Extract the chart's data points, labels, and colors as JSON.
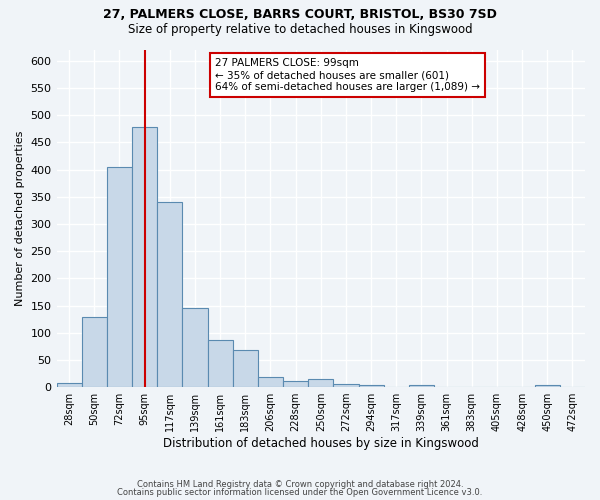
{
  "title1": "27, PALMERS CLOSE, BARRS COURT, BRISTOL, BS30 7SD",
  "title2": "Size of property relative to detached houses in Kingswood",
  "xlabel": "Distribution of detached houses by size in Kingswood",
  "ylabel": "Number of detached properties",
  "bin_labels": [
    "28sqm",
    "50sqm",
    "72sqm",
    "95sqm",
    "117sqm",
    "139sqm",
    "161sqm",
    "183sqm",
    "206sqm",
    "228sqm",
    "250sqm",
    "272sqm",
    "294sqm",
    "317sqm",
    "339sqm",
    "361sqm",
    "383sqm",
    "405sqm",
    "428sqm",
    "450sqm",
    "472sqm"
  ],
  "bar_values": [
    8,
    128,
    405,
    478,
    340,
    145,
    87,
    68,
    18,
    11,
    15,
    6,
    4,
    0,
    3,
    0,
    0,
    0,
    0,
    4,
    0
  ],
  "bar_color": "#c8d8e8",
  "bar_edge_color": "#5a8ab0",
  "annotation_line1": "27 PALMERS CLOSE: 99sqm",
  "annotation_line2": "← 35% of detached houses are smaller (601)",
  "annotation_line3": "64% of semi-detached houses are larger (1,089) →",
  "annotation_box_color": "#ffffff",
  "annotation_box_edge_color": "#cc0000",
  "vline_color": "#cc0000",
  "ylim": [
    0,
    620
  ],
  "yticks": [
    0,
    50,
    100,
    150,
    200,
    250,
    300,
    350,
    400,
    450,
    500,
    550,
    600
  ],
  "footer1": "Contains HM Land Registry data © Crown copyright and database right 2024.",
  "footer2": "Contains public sector information licensed under the Open Government Licence v3.0.",
  "bg_color": "#f0f4f8",
  "plot_bg_color": "#f0f4f8"
}
